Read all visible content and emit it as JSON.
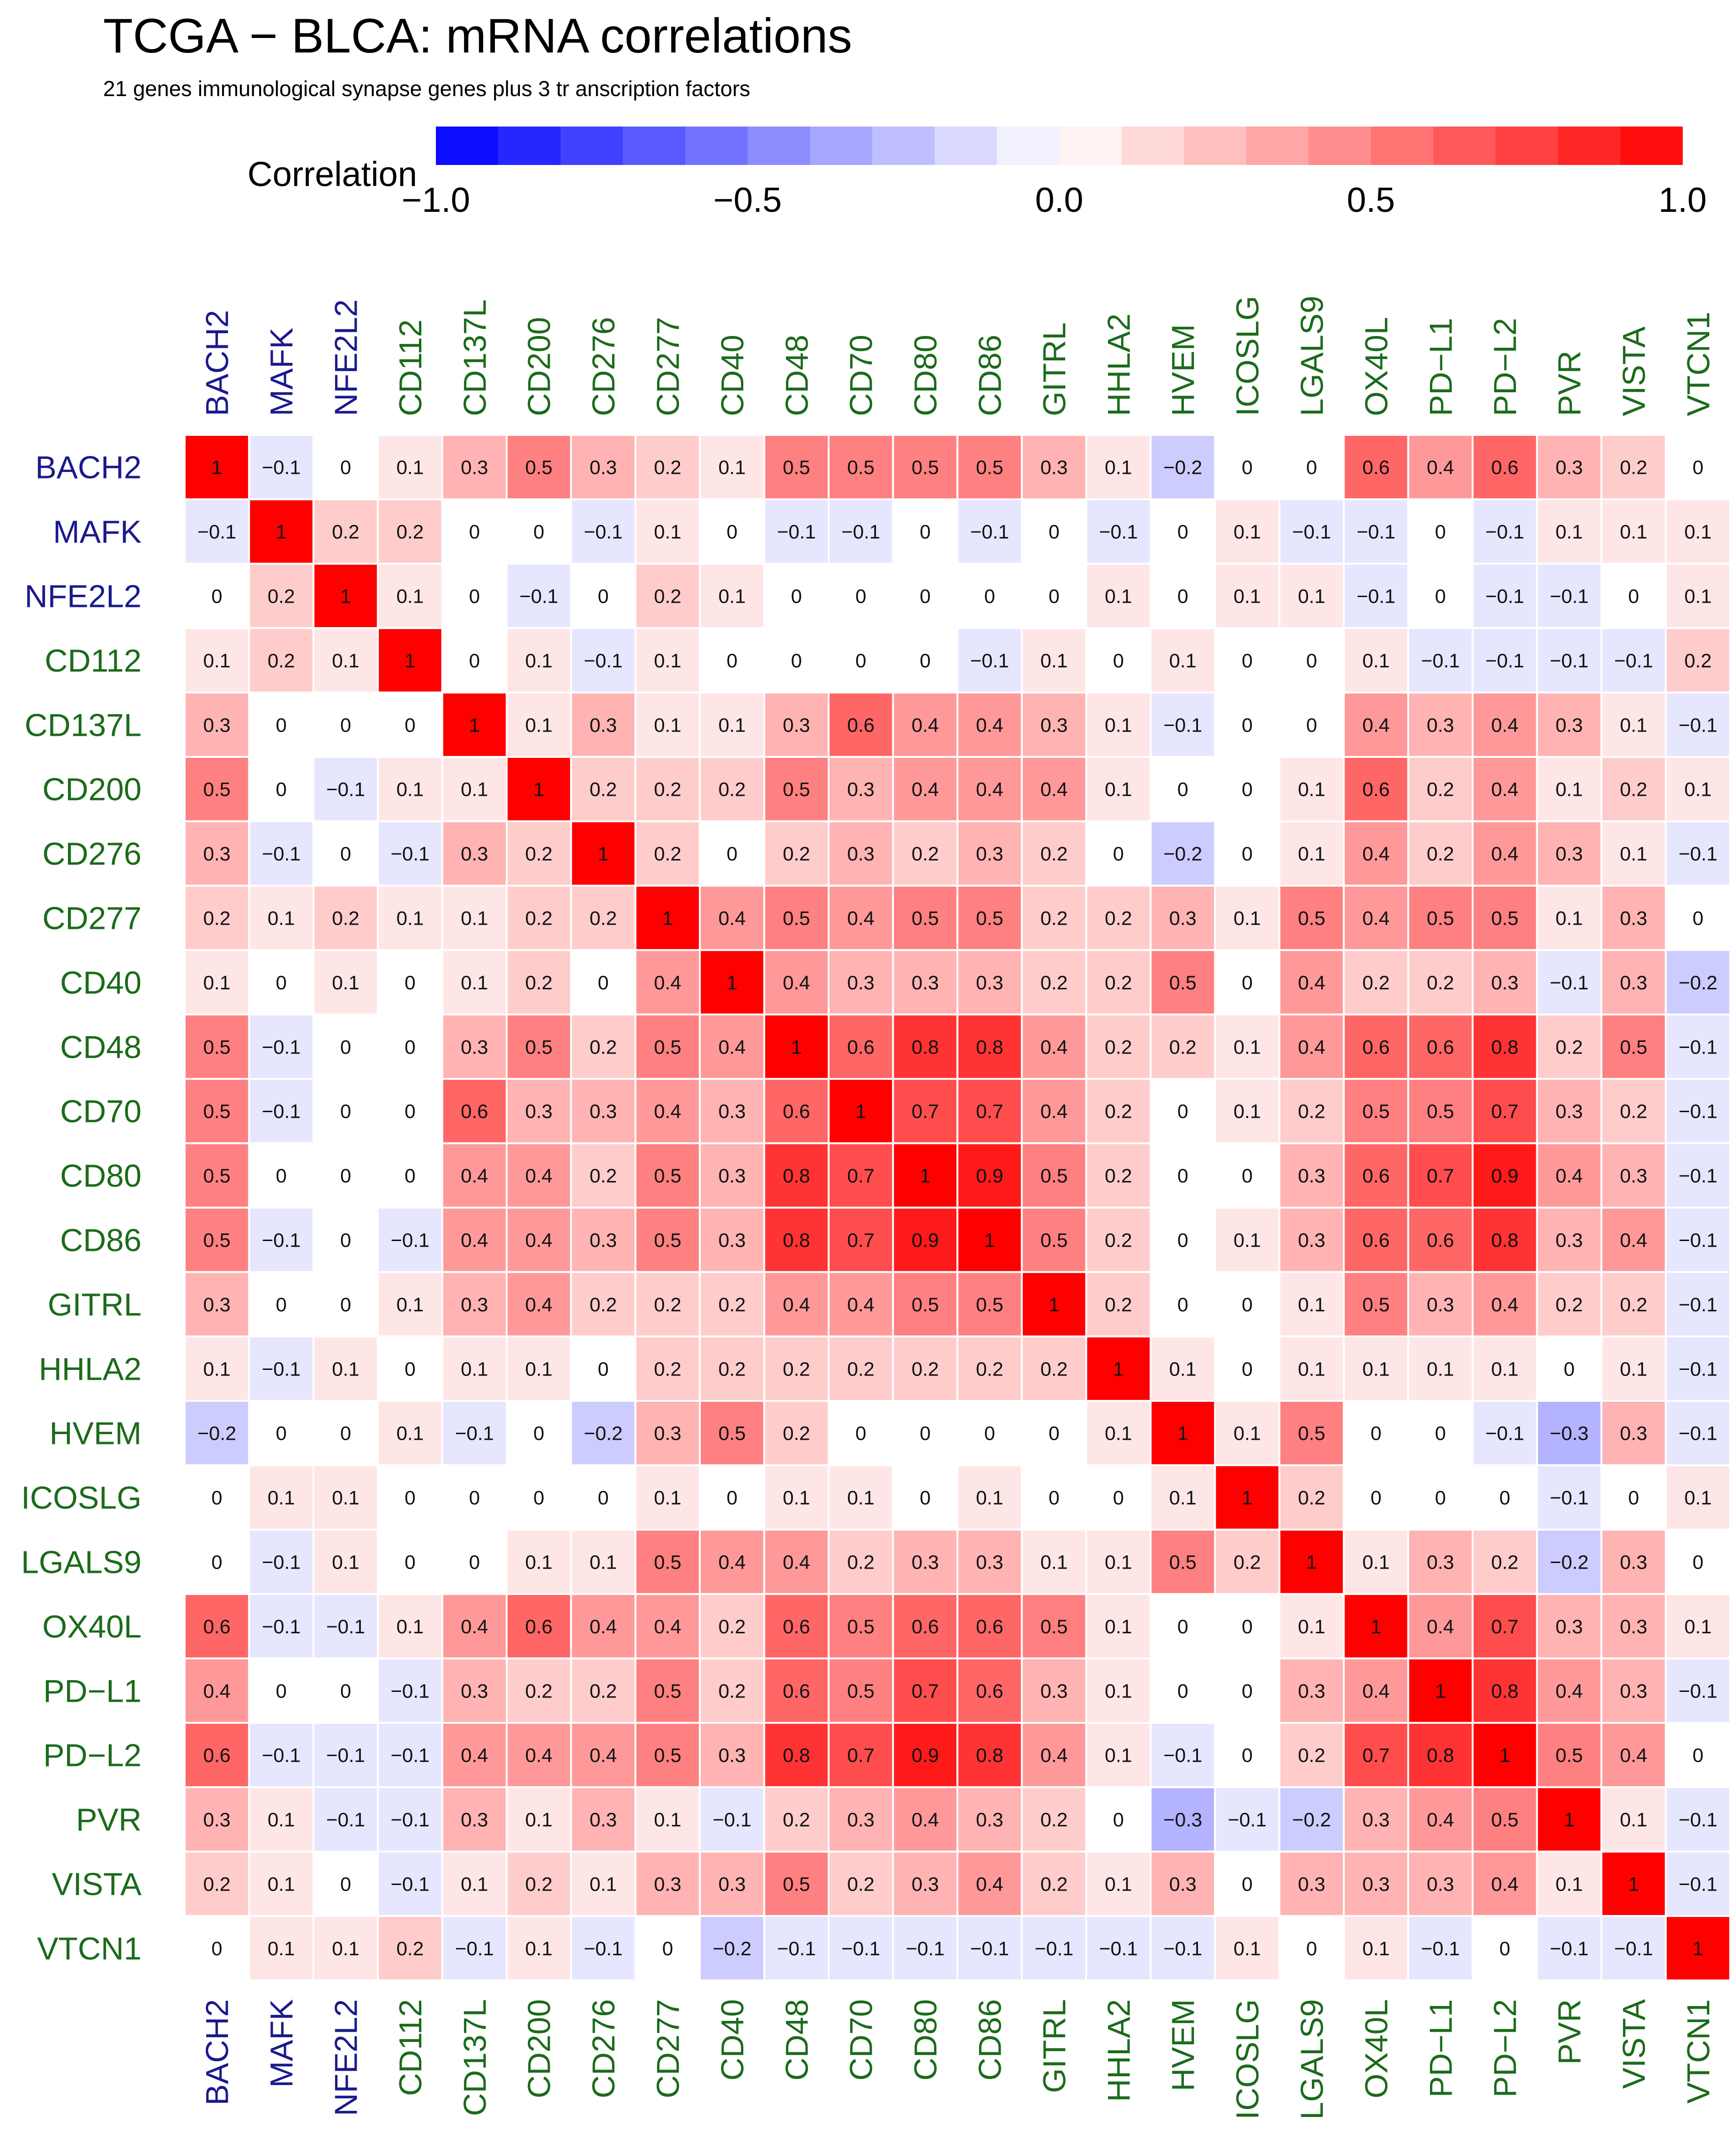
{
  "colors": {
    "tf_label": "#1a1a8c",
    "gene_label": "#1b6b1b",
    "negative": "#0000ff",
    "neutral": "#ffffff",
    "positive": "#ff0000",
    "cell_border": "#ffffff"
  },
  "chart_data": {
    "type": "heatmap",
    "title": "TCGA − BLCA: mRNA correlations",
    "subtitle": "21 genes immunological synapse genes plus 3 tr anscription factors",
    "legend": {
      "title": "Correlation",
      "range": [
        -1.0,
        1.0
      ],
      "bins": 20,
      "ticks": [
        -1.0,
        -0.5,
        0.0,
        0.5,
        1.0
      ],
      "tick_labels": [
        "−1.0",
        "−0.5",
        "0.0",
        "0.5",
        "1.0"
      ]
    },
    "transcription_factors": [
      "BACH2",
      "MAFK",
      "NFE2L2"
    ],
    "genes": [
      "BACH2",
      "MAFK",
      "NFE2L2",
      "CD112",
      "CD137L",
      "CD200",
      "CD276",
      "CD277",
      "CD40",
      "CD48",
      "CD70",
      "CD80",
      "CD86",
      "GITRL",
      "HHLA2",
      "HVEM",
      "ICOSLG",
      "LGALS9",
      "OX40L",
      "PD−L1",
      "PD−L2",
      "PVR",
      "VISTA",
      "VTCN1"
    ],
    "matrix": [
      [
        1,
        -0.1,
        0,
        0.1,
        0.3,
        0.5,
        0.3,
        0.2,
        0.1,
        0.5,
        0.5,
        0.5,
        0.5,
        0.3,
        0.1,
        -0.2,
        0,
        0,
        0.6,
        0.4,
        0.6,
        0.3,
        0.2,
        0
      ],
      [
        -0.1,
        1,
        0.2,
        0.2,
        0,
        0,
        -0.1,
        0.1,
        0,
        -0.1,
        -0.1,
        0,
        -0.1,
        0,
        -0.1,
        0,
        0.1,
        -0.1,
        -0.1,
        0,
        -0.1,
        0.1,
        0.1,
        0.1
      ],
      [
        0,
        0.2,
        1,
        0.1,
        0,
        -0.1,
        0,
        0.2,
        0.1,
        0,
        0,
        0,
        0,
        0,
        0.1,
        0,
        0.1,
        0.1,
        -0.1,
        0,
        -0.1,
        -0.1,
        0,
        0.1
      ],
      [
        0.1,
        0.2,
        0.1,
        1,
        0,
        0.1,
        -0.1,
        0.1,
        0,
        0,
        0,
        0,
        -0.1,
        0.1,
        0,
        0.1,
        0,
        0,
        0.1,
        -0.1,
        -0.1,
        -0.1,
        -0.1,
        0.2
      ],
      [
        0.3,
        0,
        0,
        0,
        1,
        0.1,
        0.3,
        0.1,
        0.1,
        0.3,
        0.6,
        0.4,
        0.4,
        0.3,
        0.1,
        -0.1,
        0,
        0,
        0.4,
        0.3,
        0.4,
        0.3,
        0.1,
        -0.1
      ],
      [
        0.5,
        0,
        -0.1,
        0.1,
        0.1,
        1,
        0.2,
        0.2,
        0.2,
        0.5,
        0.3,
        0.4,
        0.4,
        0.4,
        0.1,
        0,
        0,
        0.1,
        0.6,
        0.2,
        0.4,
        0.1,
        0.2,
        0.1
      ],
      [
        0.3,
        -0.1,
        0,
        -0.1,
        0.3,
        0.2,
        1,
        0.2,
        0,
        0.2,
        0.3,
        0.2,
        0.3,
        0.2,
        0,
        -0.2,
        0,
        0.1,
        0.4,
        0.2,
        0.4,
        0.3,
        0.1,
        -0.1
      ],
      [
        0.2,
        0.1,
        0.2,
        0.1,
        0.1,
        0.2,
        0.2,
        1,
        0.4,
        0.5,
        0.4,
        0.5,
        0.5,
        0.2,
        0.2,
        0.3,
        0.1,
        0.5,
        0.4,
        0.5,
        0.5,
        0.1,
        0.3,
        0
      ],
      [
        0.1,
        0,
        0.1,
        0,
        0.1,
        0.2,
        0,
        0.4,
        1,
        0.4,
        0.3,
        0.3,
        0.3,
        0.2,
        0.2,
        0.5,
        0,
        0.4,
        0.2,
        0.2,
        0.3,
        -0.1,
        0.3,
        -0.2
      ],
      [
        0.5,
        -0.1,
        0,
        0,
        0.3,
        0.5,
        0.2,
        0.5,
        0.4,
        1,
        0.6,
        0.8,
        0.8,
        0.4,
        0.2,
        0.2,
        0.1,
        0.4,
        0.6,
        0.6,
        0.8,
        0.2,
        0.5,
        -0.1
      ],
      [
        0.5,
        -0.1,
        0,
        0,
        0.6,
        0.3,
        0.3,
        0.4,
        0.3,
        0.6,
        1,
        0.7,
        0.7,
        0.4,
        0.2,
        0,
        0.1,
        0.2,
        0.5,
        0.5,
        0.7,
        0.3,
        0.2,
        -0.1
      ],
      [
        0.5,
        0,
        0,
        0,
        0.4,
        0.4,
        0.2,
        0.5,
        0.3,
        0.8,
        0.7,
        1,
        0.9,
        0.5,
        0.2,
        0,
        0,
        0.3,
        0.6,
        0.7,
        0.9,
        0.4,
        0.3,
        -0.1
      ],
      [
        0.5,
        -0.1,
        0,
        -0.1,
        0.4,
        0.4,
        0.3,
        0.5,
        0.3,
        0.8,
        0.7,
        0.9,
        1,
        0.5,
        0.2,
        0,
        0.1,
        0.3,
        0.6,
        0.6,
        0.8,
        0.3,
        0.4,
        -0.1
      ],
      [
        0.3,
        0,
        0,
        0.1,
        0.3,
        0.4,
        0.2,
        0.2,
        0.2,
        0.4,
        0.4,
        0.5,
        0.5,
        1,
        0.2,
        0,
        0,
        0.1,
        0.5,
        0.3,
        0.4,
        0.2,
        0.2,
        -0.1
      ],
      [
        0.1,
        -0.1,
        0.1,
        0,
        0.1,
        0.1,
        0,
        0.2,
        0.2,
        0.2,
        0.2,
        0.2,
        0.2,
        0.2,
        1,
        0.1,
        0,
        0.1,
        0.1,
        0.1,
        0.1,
        0,
        0.1,
        -0.1
      ],
      [
        -0.2,
        0,
        0,
        0.1,
        -0.1,
        0,
        -0.2,
        0.3,
        0.5,
        0.2,
        0,
        0,
        0,
        0,
        0.1,
        1,
        0.1,
        0.5,
        0,
        0,
        -0.1,
        -0.3,
        0.3,
        -0.1
      ],
      [
        0,
        0.1,
        0.1,
        0,
        0,
        0,
        0,
        0.1,
        0,
        0.1,
        0.1,
        0,
        0.1,
        0,
        0,
        0.1,
        1,
        0.2,
        0,
        0,
        0,
        -0.1,
        0,
        0.1
      ],
      [
        0,
        -0.1,
        0.1,
        0,
        0,
        0.1,
        0.1,
        0.5,
        0.4,
        0.4,
        0.2,
        0.3,
        0.3,
        0.1,
        0.1,
        0.5,
        0.2,
        1,
        0.1,
        0.3,
        0.2,
        -0.2,
        0.3,
        0
      ],
      [
        0.6,
        -0.1,
        -0.1,
        0.1,
        0.4,
        0.6,
        0.4,
        0.4,
        0.2,
        0.6,
        0.5,
        0.6,
        0.6,
        0.5,
        0.1,
        0,
        0,
        0.1,
        1,
        0.4,
        0.7,
        0.3,
        0.3,
        0.1
      ],
      [
        0.4,
        0,
        0,
        -0.1,
        0.3,
        0.2,
        0.2,
        0.5,
        0.2,
        0.6,
        0.5,
        0.7,
        0.6,
        0.3,
        0.1,
        0,
        0,
        0.3,
        0.4,
        1,
        0.8,
        0.4,
        0.3,
        -0.1
      ],
      [
        0.6,
        -0.1,
        -0.1,
        -0.1,
        0.4,
        0.4,
        0.4,
        0.5,
        0.3,
        0.8,
        0.7,
        0.9,
        0.8,
        0.4,
        0.1,
        -0.1,
        0,
        0.2,
        0.7,
        0.8,
        1,
        0.5,
        0.4,
        0
      ],
      [
        0.3,
        0.1,
        -0.1,
        -0.1,
        0.3,
        0.1,
        0.3,
        0.1,
        -0.1,
        0.2,
        0.3,
        0.4,
        0.3,
        0.2,
        0,
        -0.3,
        -0.1,
        -0.2,
        0.3,
        0.4,
        0.5,
        1,
        0.1,
        -0.1
      ],
      [
        0.2,
        0.1,
        0,
        -0.1,
        0.1,
        0.2,
        0.1,
        0.3,
        0.3,
        0.5,
        0.2,
        0.3,
        0.4,
        0.2,
        0.1,
        0.3,
        0,
        0.3,
        0.3,
        0.3,
        0.4,
        0.1,
        1,
        -0.1
      ],
      [
        0,
        0.1,
        0.1,
        0.2,
        -0.1,
        0.1,
        -0.1,
        0,
        -0.2,
        -0.1,
        -0.1,
        -0.1,
        -0.1,
        -0.1,
        -0.1,
        -0.1,
        0.1,
        0,
        0.1,
        -0.1,
        0,
        -0.1,
        -0.1,
        1
      ]
    ]
  }
}
